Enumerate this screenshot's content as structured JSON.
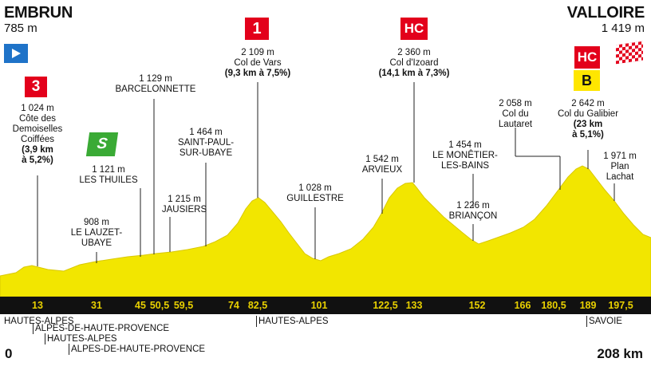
{
  "start": {
    "city": "EMBRUN",
    "altitude": "785 m"
  },
  "finish": {
    "city": "VALLOIRE",
    "altitude": "1 419 m"
  },
  "distance_start": "0",
  "distance_end": "208 km",
  "colors": {
    "terrain": "#f2e600",
    "terrain_dark": "#e2d400",
    "axis": "#111111",
    "km_text": "#e8d000",
    "climb_red": "#e3001b",
    "sprint_green": "#3aaa35",
    "bonus_yellow": "#ffe600",
    "start_blue": "#1f73c8"
  },
  "icons": {
    "start": "start-flag-icon",
    "finish": "finish-chequered-flag-icon",
    "sprint": "intermediate-sprint-icon",
    "bonus": "bonus-seconds-icon"
  },
  "badges": {
    "cat3": "3",
    "cat1": "1",
    "hc1": "HC",
    "hc2": "HC",
    "sprint": "S",
    "bonus": "B"
  },
  "km_markers": [
    "13",
    "31",
    "45",
    "50,5",
    "59,5",
    "74",
    "82,5",
    "101",
    "122,5",
    "133",
    "152",
    "166",
    "180,5",
    "189",
    "197,5"
  ],
  "waypoints": {
    "demoiselles": {
      "alt": "1 024 m",
      "name1": "Côte des",
      "name2": "Demoiselles",
      "name3": "Coiffées",
      "detail1": "(3,9 km",
      "detail2": "à 5,2%)"
    },
    "lauzet": {
      "alt": "908 m",
      "name1": "LE LAUZET-",
      "name2": "UBAYE"
    },
    "thuiles": {
      "alt": "1 121 m",
      "name1": "LES THUILES"
    },
    "barcelonnette": {
      "alt": "1 129 m",
      "name1": "BARCELONNETTE"
    },
    "jausiers": {
      "alt": "1 215 m",
      "name1": "JAUSIERS"
    },
    "saintpaul": {
      "alt": "1 464 m",
      "name1": "SAINT-PAUL-",
      "name2": "SUR-UBAYE"
    },
    "vars": {
      "alt": "2 109 m",
      "name1": "Col de Vars",
      "detail1": "(9,3 km à 7,5%)"
    },
    "guillestre": {
      "alt": "1 028 m",
      "name1": "GUILLESTRE"
    },
    "arvieux": {
      "alt": "1 542 m",
      "name1": "ARVIEUX"
    },
    "izoard": {
      "alt": "2 360 m",
      "name1": "Col d'Izoard",
      "detail1": "(14,1 km à 7,3%)"
    },
    "briancon": {
      "alt": "1 226 m",
      "name1": "BRIANÇON"
    },
    "monetier": {
      "alt": "1 454 m",
      "name1": "LE MONÊTIER-",
      "name2": "LES-BAINS"
    },
    "lautaret": {
      "alt": "2 058 m",
      "name1": "Col du",
      "name2": "Lautaret"
    },
    "galibier": {
      "alt": "2 642 m",
      "name1": "Col du Galibier",
      "detail1": "(23 km",
      "detail2": "à 5,1%)"
    },
    "planlachat": {
      "alt": "1 971 m",
      "name1": "Plan",
      "name2": "Lachat"
    }
  },
  "regions": [
    "HAUTES-ALPES",
    "ALPES-DE-HAUTE-PROVENCE",
    "HAUTES-ALPES",
    "ALPES-DE-HAUTE-PROVENCE",
    "HAUTES-ALPES",
    "SAVOIE"
  ]
}
